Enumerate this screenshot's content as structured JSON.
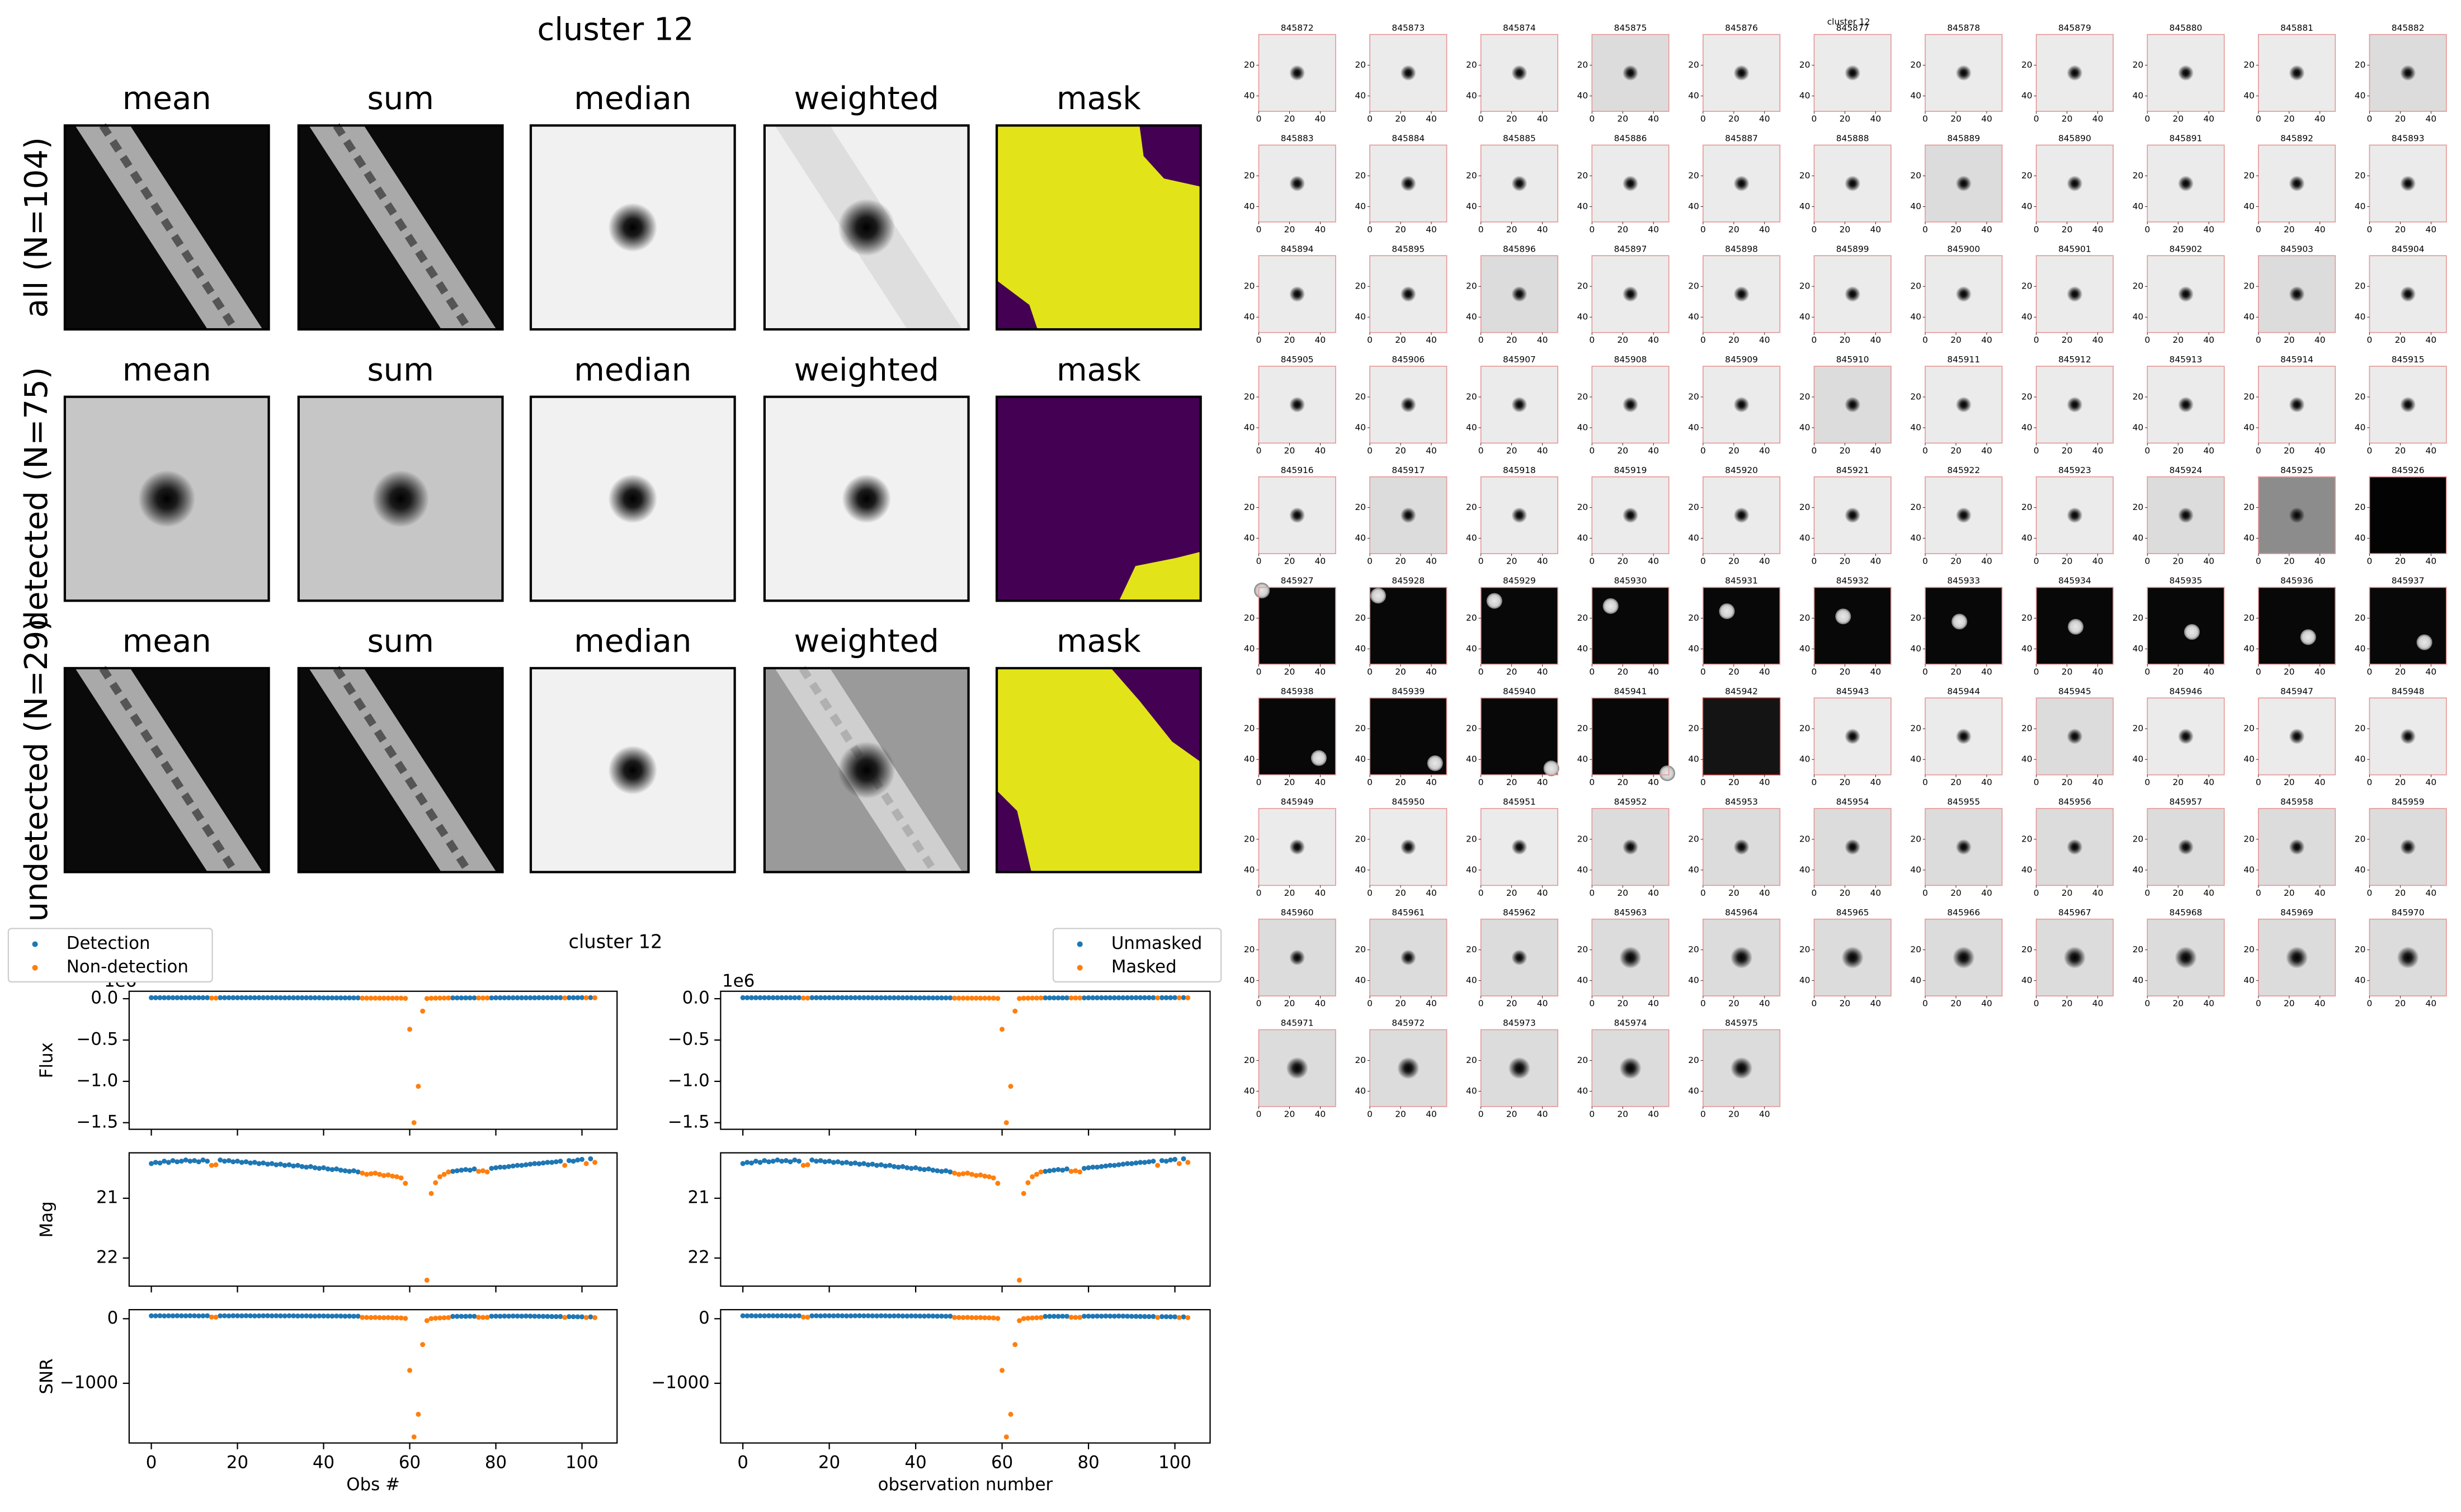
{
  "stamps": {
    "title": "cluster 12",
    "columns": [
      "mean",
      "sum",
      "median",
      "weighted",
      "mask"
    ],
    "rows": [
      "all (N=104)",
      "detected (N=75)",
      "undetected (N=29)"
    ]
  },
  "chart_data": {
    "type": "scatter",
    "title": "cluster 12",
    "xlabels": [
      "Obs #",
      "observation number"
    ],
    "legend_right": [
      "Unmasked",
      "Masked"
    ],
    "xlim": [
      -5.15,
      108.15
    ],
    "xticks": [
      0,
      20,
      40,
      60,
      80,
      100
    ],
    "x": [
      0,
      1,
      2,
      3,
      4,
      5,
      6,
      7,
      8,
      9,
      10,
      11,
      12,
      13,
      14,
      15,
      16,
      17,
      18,
      19,
      20,
      21,
      22,
      23,
      24,
      25,
      26,
      27,
      28,
      29,
      30,
      31,
      32,
      33,
      34,
      35,
      36,
      37,
      38,
      39,
      40,
      41,
      42,
      43,
      44,
      45,
      46,
      47,
      48,
      49,
      50,
      51,
      52,
      53,
      54,
      55,
      56,
      57,
      58,
      59,
      60,
      61,
      62,
      63,
      64,
      65,
      66,
      67,
      68,
      69,
      70,
      71,
      72,
      73,
      74,
      75,
      76,
      77,
      78,
      79,
      80,
      81,
      82,
      83,
      84,
      85,
      86,
      87,
      88,
      89,
      90,
      91,
      92,
      93,
      94,
      95,
      96,
      97,
      98,
      99,
      100,
      101,
      102,
      103
    ],
    "panels": [
      {
        "ylabel": "Flux",
        "offset_label": "1e6",
        "ylim": [
          -1.58,
          0.09
        ],
        "invert_y": false,
        "yticks": [
          {
            "value": -1.5,
            "label": "−1.5"
          },
          {
            "value": -1.0,
            "label": "−1.0"
          },
          {
            "value": -0.5,
            "label": "−0.5"
          },
          {
            "value": 0.0,
            "label": "0.0"
          }
        ],
        "series": [
          {
            "name": "Detection",
            "color": "#1f77b4",
            "values": [
              0.012,
              0.012,
              0.012,
              0.012,
              0.012,
              0.012,
              0.012,
              0.012,
              0.012,
              0.012,
              0.012,
              0.012,
              0.012,
              0.012,
              null,
              null,
              0.012,
              0.012,
              0.012,
              0.012,
              0.012,
              0.012,
              0.012,
              0.012,
              0.012,
              0.012,
              0.012,
              0.012,
              0.012,
              0.012,
              0.011,
              0.011,
              0.011,
              0.011,
              0.011,
              0.011,
              0.011,
              0.011,
              0.011,
              0.011,
              0.01,
              0.01,
              0.01,
              0.01,
              0.01,
              0.01,
              0.01,
              0.01,
              0.01,
              null,
              null,
              null,
              null,
              null,
              null,
              null,
              null,
              null,
              null,
              null,
              null,
              null,
              null,
              null,
              null,
              null,
              null,
              null,
              null,
              null,
              0.01,
              0.01,
              0.01,
              0.01,
              0.01,
              0.01,
              null,
              null,
              null,
              0.01,
              0.011,
              0.011,
              0.011,
              0.011,
              0.011,
              0.011,
              0.011,
              0.011,
              0.011,
              0.011,
              0.012,
              0.012,
              0.012,
              0.012,
              0.012,
              0.012,
              null,
              0.012,
              0.012,
              0.012,
              0.013,
              null,
              0.013,
              null
            ]
          },
          {
            "name": "Non-detection",
            "color": "#ff7f0e",
            "values": [
              null,
              null,
              null,
              null,
              null,
              null,
              null,
              null,
              null,
              null,
              null,
              null,
              null,
              null,
              0.008,
              0.008,
              null,
              null,
              null,
              null,
              null,
              null,
              null,
              null,
              null,
              null,
              null,
              null,
              null,
              null,
              null,
              null,
              null,
              null,
              null,
              null,
              null,
              null,
              null,
              null,
              null,
              null,
              null,
              null,
              null,
              null,
              null,
              null,
              null,
              0.007,
              0.007,
              0.007,
              0.007,
              0.007,
              0.007,
              0.007,
              0.007,
              0.007,
              0.007,
              0.004,
              -0.37,
              -1.5,
              -1.06,
              -0.15,
              0.002,
              0.006,
              0.007,
              0.008,
              0.008,
              0.009,
              null,
              null,
              null,
              null,
              null,
              null,
              0.009,
              0.009,
              0.009,
              null,
              null,
              null,
              null,
              null,
              null,
              null,
              null,
              null,
              null,
              null,
              null,
              null,
              null,
              null,
              null,
              null,
              0.01,
              null,
              null,
              null,
              null,
              0.011,
              null,
              0.011
            ]
          }
        ]
      },
      {
        "ylabel": "Mag",
        "ylim": [
          20.24,
          22.47
        ],
        "invert_y": true,
        "yticks": [
          21,
          22
        ],
        "series": [
          {
            "name": "Detection",
            "color": "#1f77b4",
            "values": [
              20.42,
              20.4,
              20.41,
              20.38,
              20.4,
              20.37,
              20.39,
              20.38,
              20.36,
              20.38,
              20.37,
              20.39,
              20.36,
              20.38,
              null,
              null,
              20.36,
              20.38,
              20.37,
              20.39,
              20.38,
              20.4,
              20.39,
              20.41,
              20.4,
              20.42,
              20.41,
              20.43,
              20.42,
              20.44,
              20.43,
              20.45,
              20.44,
              20.46,
              20.45,
              20.47,
              20.48,
              20.47,
              20.49,
              20.5,
              20.49,
              20.51,
              20.52,
              20.51,
              20.53,
              20.54,
              20.55,
              20.54,
              20.56,
              null,
              null,
              null,
              null,
              null,
              null,
              null,
              null,
              null,
              null,
              null,
              null,
              null,
              null,
              null,
              null,
              null,
              null,
              null,
              null,
              null,
              20.55,
              20.54,
              20.53,
              20.52,
              20.53,
              20.51,
              null,
              null,
              null,
              20.5,
              20.49,
              20.48,
              20.48,
              20.47,
              20.46,
              20.45,
              20.45,
              20.44,
              20.43,
              20.42,
              20.42,
              20.41,
              20.4,
              20.4,
              20.39,
              20.38,
              null,
              20.37,
              20.38,
              20.36,
              20.35,
              null,
              20.34,
              null
            ]
          },
          {
            "name": "Non-detection",
            "color": "#ff7f0e",
            "values": [
              null,
              null,
              null,
              null,
              null,
              null,
              null,
              null,
              null,
              null,
              null,
              null,
              null,
              null,
              20.45,
              20.44,
              null,
              null,
              null,
              null,
              null,
              null,
              null,
              null,
              null,
              null,
              null,
              null,
              null,
              null,
              null,
              null,
              null,
              null,
              null,
              null,
              null,
              null,
              null,
              null,
              null,
              null,
              null,
              null,
              null,
              null,
              null,
              null,
              null,
              20.58,
              20.6,
              20.59,
              20.58,
              20.6,
              20.62,
              20.61,
              20.63,
              20.64,
              20.66,
              20.75,
              null,
              null,
              null,
              null,
              22.37,
              20.92,
              20.74,
              20.64,
              20.6,
              20.56,
              null,
              null,
              null,
              null,
              null,
              null,
              20.55,
              20.54,
              20.56,
              null,
              null,
              null,
              null,
              null,
              null,
              null,
              null,
              null,
              null,
              null,
              null,
              null,
              null,
              null,
              null,
              null,
              20.45,
              null,
              null,
              null,
              null,
              20.42,
              null,
              20.4
            ]
          }
        ]
      },
      {
        "ylabel": "SNR",
        "ylim": [
          -1924,
          140
        ],
        "invert_y": false,
        "yticks": [
          {
            "value": -1000,
            "label": "−1000"
          },
          0
        ],
        "series": [
          {
            "name": "Detection",
            "color": "#1f77b4",
            "values": [
              45,
              44,
              46,
              43,
              45,
              44,
              46,
              45,
              44,
              46,
              45,
              43,
              44,
              46,
              null,
              null,
              44,
              45,
              43,
              46,
              45,
              44,
              46,
              45,
              43,
              44,
              45,
              46,
              44,
              45,
              44,
              43,
              45,
              44,
              42,
              43,
              44,
              42,
              41,
              43,
              42,
              41,
              40,
              42,
              41,
              39,
              40,
              38,
              39,
              null,
              null,
              null,
              null,
              null,
              null,
              null,
              null,
              null,
              null,
              null,
              null,
              null,
              null,
              null,
              null,
              null,
              null,
              null,
              null,
              null,
              35,
              36,
              37,
              36,
              38,
              37,
              null,
              null,
              null,
              38,
              39,
              38,
              40,
              39,
              41,
              40,
              39,
              41,
              40,
              38,
              37,
              36,
              35,
              34,
              33,
              34,
              null,
              32,
              31,
              30,
              29,
              null,
              28,
              null
            ]
          },
          {
            "name": "Non-detection",
            "color": "#ff7f0e",
            "values": [
              null,
              null,
              null,
              null,
              null,
              null,
              null,
              null,
              null,
              null,
              null,
              null,
              null,
              null,
              25,
              24,
              null,
              null,
              null,
              null,
              null,
              null,
              null,
              null,
              null,
              null,
              null,
              null,
              null,
              null,
              null,
              null,
              null,
              null,
              null,
              null,
              null,
              null,
              null,
              null,
              null,
              null,
              null,
              null,
              null,
              null,
              null,
              null,
              null,
              20,
              19,
              18,
              20,
              17,
              16,
              18,
              15,
              14,
              12,
              5,
              -800,
              -1830,
              -1480,
              -400,
              -30,
              2,
              8,
              12,
              15,
              18,
              null,
              null,
              null,
              null,
              null,
              null,
              22,
              20,
              21,
              null,
              null,
              null,
              null,
              null,
              null,
              null,
              null,
              null,
              null,
              null,
              null,
              null,
              null,
              null,
              null,
              null,
              20,
              null,
              null,
              null,
              null,
              18,
              null,
              17
            ]
          }
        ]
      }
    ]
  },
  "thumbnails": {
    "title": "cluster 12",
    "xticks": [
      0,
      20,
      40
    ],
    "yticks": [
      20,
      40
    ],
    "lim": [
      0,
      50
    ],
    "ids": [
      845872,
      845873,
      845874,
      845875,
      845876,
      845877,
      845878,
      845879,
      845880,
      845881,
      845882,
      845883,
      845884,
      845885,
      845886,
      845887,
      845888,
      845889,
      845890,
      845891,
      845892,
      845893,
      845894,
      845895,
      845896,
      845897,
      845898,
      845899,
      845900,
      845901,
      845902,
      845903,
      845904,
      845905,
      845906,
      845907,
      845908,
      845909,
      845910,
      845911,
      845912,
      845913,
      845914,
      845915,
      845916,
      845917,
      845918,
      845919,
      845920,
      845921,
      845922,
      845923,
      845924,
      845925,
      845926,
      845927,
      845928,
      845929,
      845930,
      845931,
      845932,
      845933,
      845934,
      845935,
      845936,
      845937,
      845938,
      845939,
      845940,
      845941,
      845942,
      845943,
      845944,
      845945,
      845946,
      845947,
      845948,
      845949,
      845950,
      845951,
      845952,
      845953,
      845954,
      845955,
      845956,
      845957,
      845958,
      845959,
      845960,
      845961,
      845962,
      845963,
      845964,
      845965,
      845966,
      845967,
      845968,
      845969,
      845970,
      845971,
      845972,
      845973,
      845974,
      845975
    ]
  }
}
